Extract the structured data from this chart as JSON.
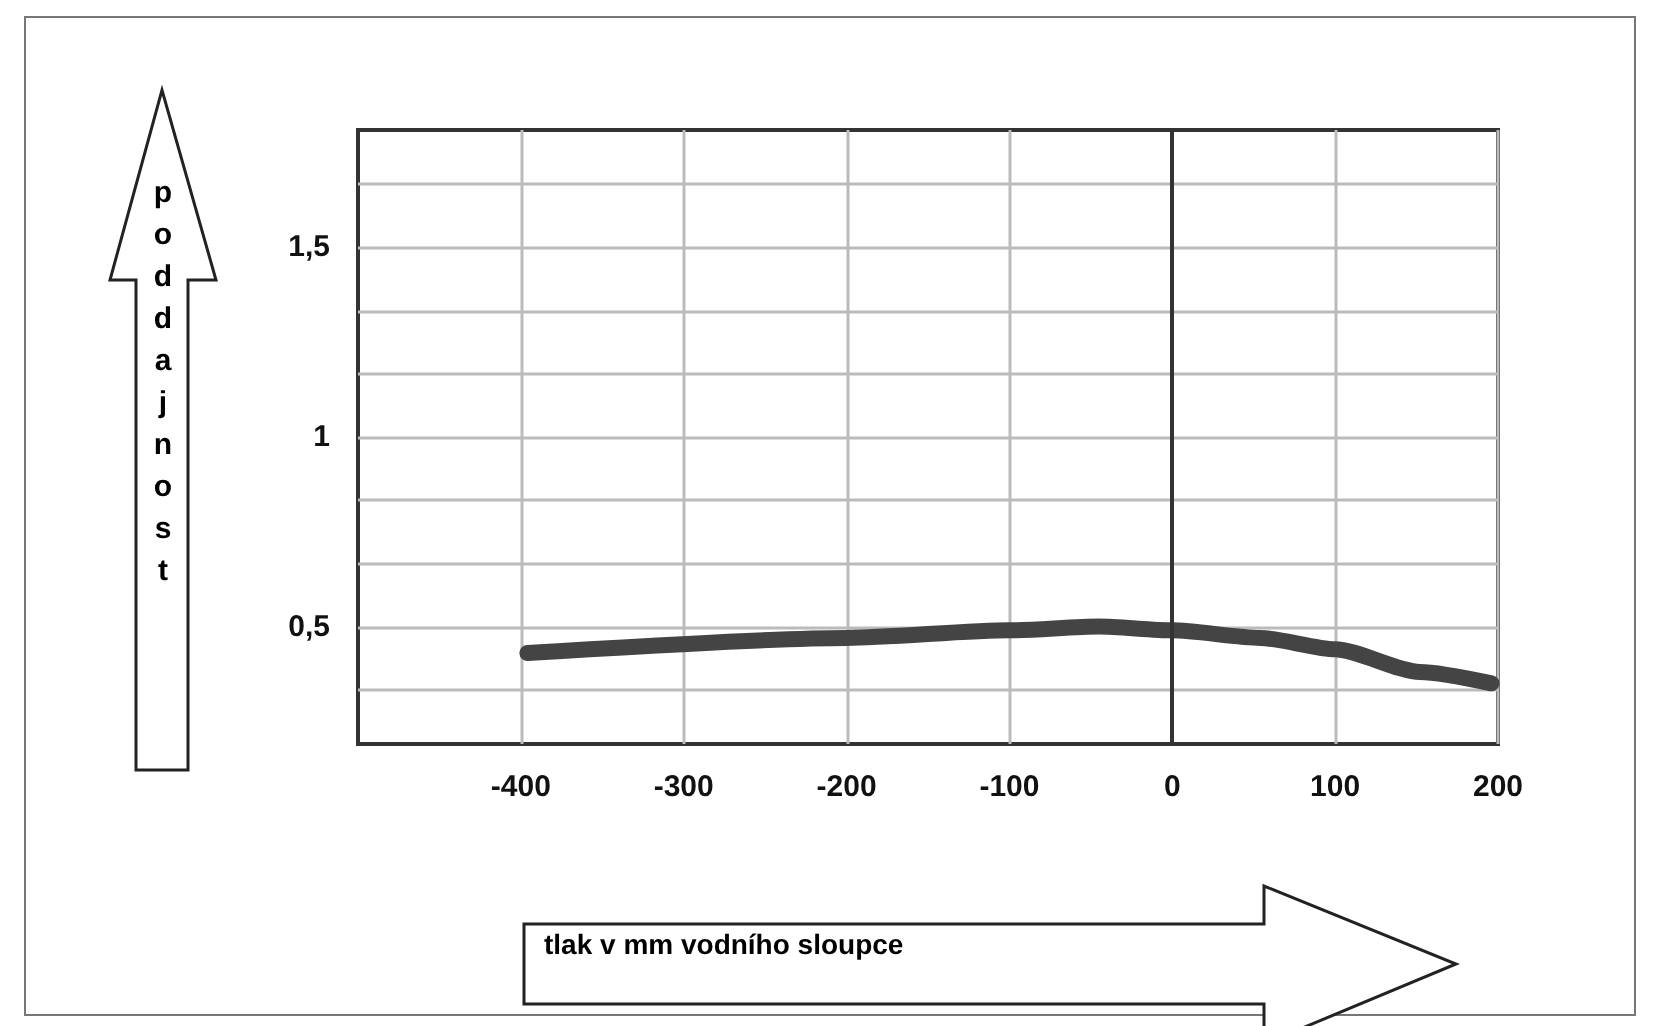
{
  "chart_data": {
    "type": "line",
    "xlabel": "tlak v mm vodního sloupce",
    "ylabel": "poddajnost",
    "x": [
      -396,
      -200,
      -100,
      -45,
      0,
      54,
      100,
      152,
      196
    ],
    "series": [
      {
        "color": "#444444",
        "values": [
          0.43,
          0.47,
          0.49,
          0.5,
          0.49,
          0.47,
          0.44,
          0.38,
          0.35
        ]
      }
    ],
    "xlim": [
      -500,
      200
    ],
    "xticks": [
      -400,
      -300,
      -200,
      -100,
      0,
      100,
      200
    ],
    "ylim": [
      0.19,
      1.81
    ],
    "yticks": [
      {
        "value": 0.333,
        "label": null
      },
      {
        "value": 0.5,
        "label": "0,5"
      },
      {
        "value": 0.667,
        "label": null
      },
      {
        "value": 0.833,
        "label": null
      },
      {
        "value": 1,
        "label": "1"
      },
      {
        "value": 1.167,
        "label": null
      },
      {
        "value": 1.333,
        "label": null
      },
      {
        "value": 1.5,
        "label": "1,5"
      },
      {
        "value": 1.667,
        "label": null
      }
    ],
    "ref_lines": [
      {
        "axis": "x",
        "value": 0,
        "color": "#333333"
      }
    ],
    "grid": true,
    "line_style": "solid"
  }
}
